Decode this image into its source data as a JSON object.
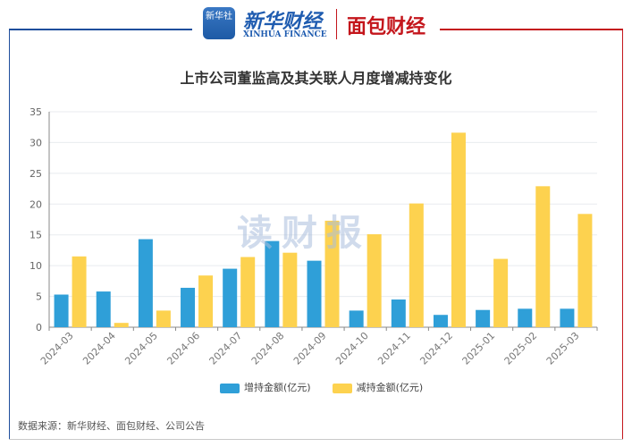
{
  "header": {
    "logo_xinhua_badge": "新华社",
    "logo_xinhua_finance": "新华财经",
    "logo_xinhua_finance_en": "XINHUA FINANCE",
    "logo_mianbao": "面包财经"
  },
  "watermark": "读财报",
  "source": "数据来源：新华财经、面包财经、公司公告",
  "chart_data": {
    "type": "bar",
    "title": "上市公司董监高及其关联人月度增减持变化",
    "categories": [
      "2024-03",
      "2024-04",
      "2024-05",
      "2024-06",
      "2024-07",
      "2024-08",
      "2024-09",
      "2024-10",
      "2024-11",
      "2024-12",
      "2025-01",
      "2025-02",
      "2025-03"
    ],
    "series": [
      {
        "name": "增持金额(亿元)",
        "color": "#2f9fd8",
        "values": [
          5.3,
          5.8,
          14.3,
          6.4,
          9.5,
          14.0,
          10.8,
          2.7,
          4.5,
          2.0,
          2.8,
          3.0,
          3.0
        ]
      },
      {
        "name": "减持金额(亿元)",
        "color": "#fdd24f",
        "values": [
          11.5,
          0.7,
          2.7,
          8.4,
          11.4,
          12.1,
          17.3,
          15.1,
          20.1,
          31.6,
          11.1,
          22.9,
          18.4
        ]
      }
    ],
    "ylim": [
      0,
      35
    ],
    "yticks": [
      0,
      5,
      10,
      15,
      20,
      25,
      30,
      35
    ],
    "grid": true,
    "legend": "bottom"
  }
}
